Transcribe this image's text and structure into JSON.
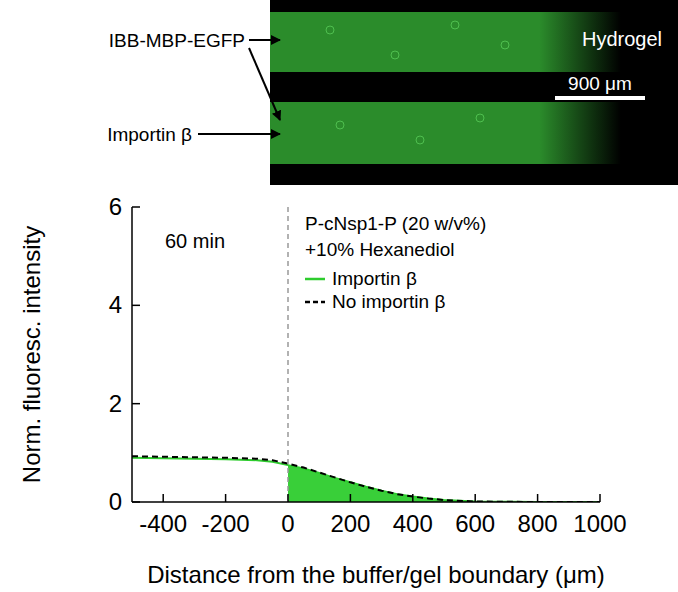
{
  "chart_data": {
    "type": "line",
    "x_label": "Distance from the buffer/gel boundary (μm)",
    "y_label": "Norm. fluoresc. intensity",
    "x": [
      -500,
      -400,
      -300,
      -200,
      -100,
      -50,
      0,
      50,
      100,
      150,
      200,
      250,
      300,
      350,
      400,
      450,
      500,
      600,
      700,
      800,
      900,
      1000
    ],
    "series": [
      {
        "name": "Importin β",
        "color": "#2ecc2e",
        "line_style": "solid",
        "values": [
          0.9,
          0.89,
          0.88,
          0.87,
          0.85,
          0.82,
          0.75,
          0.68,
          0.59,
          0.49,
          0.4,
          0.31,
          0.23,
          0.16,
          0.11,
          0.07,
          0.04,
          0.01,
          0.005,
          0,
          0,
          0
        ]
      },
      {
        "name": "No importin β",
        "color": "#000000",
        "line_style": "dashed",
        "values": [
          0.93,
          0.92,
          0.91,
          0.9,
          0.88,
          0.85,
          0.78,
          0.7,
          0.6,
          0.5,
          0.4,
          0.31,
          0.23,
          0.16,
          0.11,
          0.07,
          0.04,
          0.01,
          0.005,
          0,
          0,
          0
        ]
      }
    ],
    "xlim": [
      -500,
      1000
    ],
    "xticks": [
      -400,
      -200,
      0,
      200,
      400,
      600,
      800,
      1000
    ],
    "ylim": [
      0,
      6
    ],
    "yticks": [
      0,
      2,
      4,
      6
    ],
    "legend": "top-right",
    "annotations": [
      "60 min",
      "P-cNsp1-P (20 w/v%)",
      "+10% Hexanediol"
    ],
    "inset_labels": [
      "IBB-MBP-EGFP",
      "Importin β",
      "Hydrogel",
      "900 μm"
    ]
  }
}
